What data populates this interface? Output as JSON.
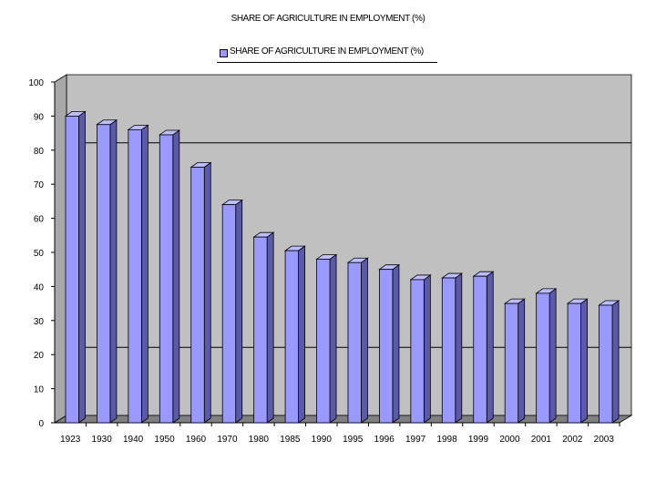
{
  "chart_data": {
    "type": "bar",
    "title": "SHARE OF AGRICULTURE IN EMPLOYMENT (%)",
    "categories": [
      "1923",
      "1930",
      "1940",
      "1950",
      "1960",
      "1970",
      "1980",
      "1985",
      "1990",
      "1995",
      "1996",
      "1997",
      "1998",
      "1999",
      "2000",
      "2001",
      "2002",
      "2003"
    ],
    "series": [
      {
        "name": "SHARE OF AGRICULTURE IN EMPLOYMENT (%)",
        "values": [
          90,
          87.5,
          86,
          84.5,
          75,
          64,
          54.5,
          50.5,
          48,
          47,
          45,
          42,
          42.5,
          43,
          35,
          38,
          35,
          34.5
        ]
      }
    ],
    "ylim": [
      0,
      100
    ],
    "yticks": [
      "0",
      "10",
      "20",
      "30",
      "40",
      "50",
      "60",
      "70",
      "80",
      "90",
      "100"
    ],
    "grid": "horizontal gridlines at 20 and 80",
    "legend_position": "top-center",
    "style": "3D clustered column",
    "colors": {
      "bar": "#9999ff",
      "bar_side": "#5a5aa8",
      "bar_top": "#bdbdff",
      "plot_back": "#c0c0c0",
      "plot_floor": "#808080"
    }
  }
}
